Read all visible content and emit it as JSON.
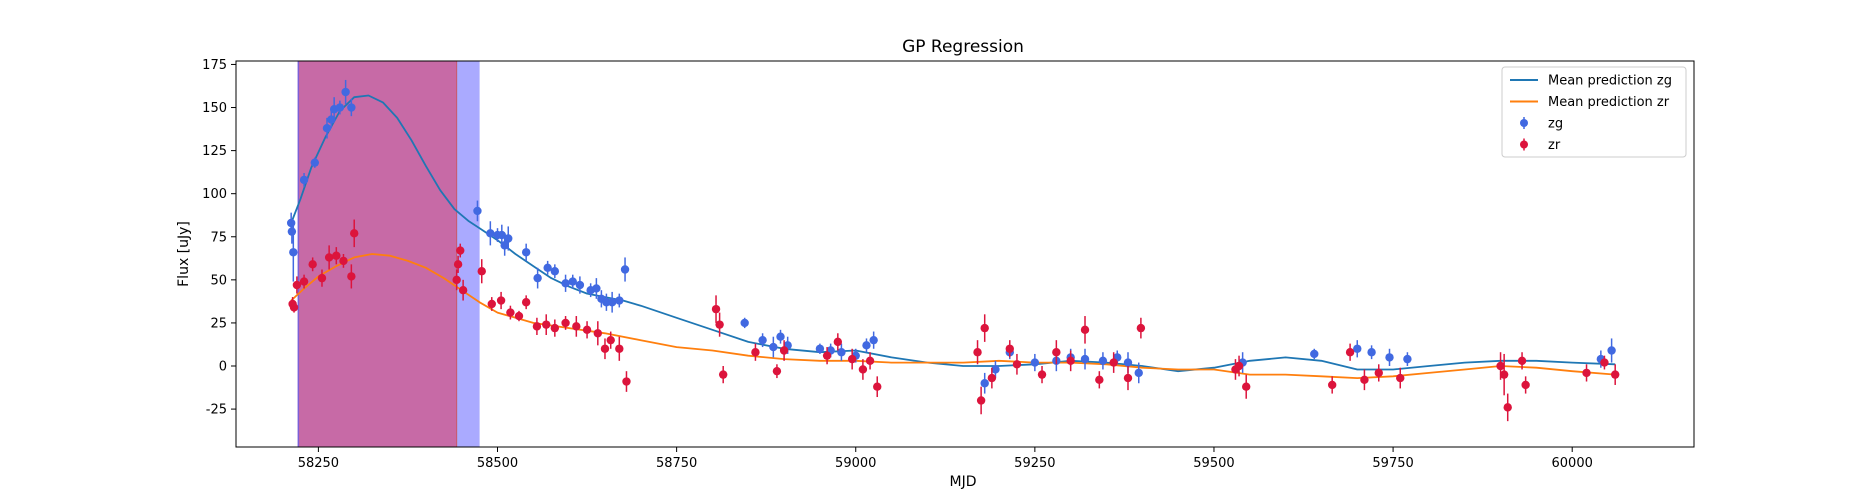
{
  "chart_data": {
    "type": "scatter",
    "title": "GP Regression",
    "xlabel": "MJD",
    "ylabel": "Flux [uJy]",
    "xlim": [
      58135,
      60170
    ],
    "ylim": [
      -47,
      177
    ],
    "x_ticks": [
      58250,
      58500,
      58750,
      59000,
      59250,
      59500,
      59750,
      60000
    ],
    "y_ticks": [
      -25,
      0,
      25,
      50,
      75,
      100,
      125,
      150,
      175
    ],
    "grid": false,
    "legend_position": "top-right",
    "shaded_regions": [
      {
        "x_start": 58222,
        "x_end": 58475,
        "color": "#aaaaff"
      },
      {
        "x_start": 58222,
        "x_end": 58443,
        "color": "#c76aa6"
      }
    ],
    "series": [
      {
        "name": "Mean prediction zg",
        "kind": "line",
        "color": "#1f77b4",
        "x": [
          58212,
          58225,
          58240,
          58260,
          58280,
          58300,
          58320,
          58340,
          58360,
          58380,
          58400,
          58420,
          58440,
          58460,
          58475,
          58500,
          58525,
          58550,
          58575,
          58600,
          58625,
          58650,
          58675,
          58700,
          58750,
          58800,
          58850,
          58900,
          58950,
          59000,
          59050,
          59100,
          59150,
          59200,
          59250,
          59300,
          59350,
          59400,
          59450,
          59500,
          59550,
          59600,
          59650,
          59700,
          59750,
          59800,
          59850,
          59900,
          59950,
          60000,
          60060
        ],
        "values": [
          83,
          97,
          115,
          133,
          148,
          156,
          157,
          153,
          144,
          131,
          116,
          102,
          91,
          84,
          80,
          73,
          65,
          58,
          51,
          46,
          42,
          40,
          38,
          35,
          28,
          21,
          14,
          10,
          8,
          9,
          5,
          2,
          0,
          0,
          1,
          3,
          2,
          0,
          -3,
          -1,
          3,
          5,
          3,
          -2,
          -2,
          0,
          2,
          3,
          3,
          2,
          1
        ]
      },
      {
        "name": "Mean prediction zr",
        "kind": "line",
        "color": "#ff7f0e",
        "x": [
          58212,
          58230,
          58250,
          58275,
          58300,
          58325,
          58350,
          58375,
          58400,
          58425,
          58450,
          58475,
          58500,
          58550,
          58600,
          58650,
          58700,
          58750,
          58800,
          58850,
          58900,
          58950,
          59000,
          59050,
          59100,
          59150,
          59200,
          59250,
          59300,
          59350,
          59400,
          59450,
          59500,
          59550,
          59600,
          59650,
          59700,
          59750,
          59800,
          59850,
          59900,
          59950,
          60000,
          60060
        ],
        "values": [
          38,
          45,
          52,
          58,
          63,
          65,
          64,
          61,
          57,
          51,
          44,
          37,
          31,
          25,
          22,
          19,
          15,
          11,
          9,
          6,
          4,
          3,
          3,
          2,
          2,
          2,
          3,
          2,
          2,
          1,
          -1,
          -2,
          -2,
          -5,
          -5,
          -6,
          -7,
          -6,
          -4,
          -2,
          0,
          -1,
          -3,
          -5
        ]
      },
      {
        "name": "zg",
        "kind": "points",
        "color": "#4169e1",
        "x": [
          58212,
          58213,
          58215,
          58230,
          58245,
          58262,
          58268,
          58272,
          58280,
          58288,
          58296,
          58472,
          58490,
          58500,
          58506,
          58510,
          58515,
          58540,
          58556,
          58570,
          58580,
          58595,
          58605,
          58615,
          58630,
          58638,
          58645,
          58652,
          58660,
          58670,
          58678,
          58845,
          58870,
          58885,
          58895,
          58905,
          58950,
          58965,
          58980,
          59000,
          59015,
          59025,
          59180,
          59195,
          59215,
          59250,
          59280,
          59300,
          59320,
          59345,
          59365,
          59380,
          59395,
          59540,
          59640,
          59700,
          59720,
          59745,
          59770,
          60040,
          60055
        ],
        "values": [
          83,
          78,
          66,
          108,
          118,
          138,
          143,
          149,
          150,
          159,
          150,
          90,
          77,
          76,
          76,
          70,
          74,
          66,
          51,
          57,
          55,
          48,
          49,
          47,
          44,
          45,
          39,
          37,
          37,
          38,
          56,
          25,
          15,
          11,
          17,
          12,
          10,
          9,
          8,
          6,
          12,
          15,
          -10,
          -2,
          8,
          2,
          3,
          5,
          4,
          3,
          5,
          2,
          -4,
          2,
          7,
          10,
          8,
          5,
          4,
          4,
          9
        ],
        "errors": [
          6,
          7,
          17,
          4,
          3,
          6,
          5,
          7,
          4,
          7,
          5,
          6,
          7,
          4,
          6,
          6,
          7,
          5,
          6,
          4,
          4,
          5,
          4,
          5,
          4,
          6,
          5,
          5,
          6,
          4,
          7,
          3,
          4,
          6,
          4,
          5,
          3,
          4,
          5,
          4,
          4,
          5,
          6,
          5,
          4,
          5,
          6,
          5,
          6,
          5,
          4,
          6,
          6,
          6,
          3,
          5,
          4,
          5,
          4,
          5,
          7
        ]
      },
      {
        "name": "zr",
        "kind": "points",
        "color": "#dc143c",
        "x": [
          58214,
          58216,
          58220,
          58230,
          58242,
          58255,
          58265,
          58275,
          58285,
          58296,
          58300,
          58443,
          58445,
          58448,
          58452,
          58478,
          58492,
          58505,
          58518,
          58530,
          58540,
          58555,
          58568,
          58580,
          58595,
          58610,
          58625,
          58640,
          58650,
          58658,
          58670,
          58680,
          58805,
          58810,
          58815,
          58860,
          58890,
          58900,
          58960,
          58975,
          58995,
          59010,
          59020,
          59030,
          59170,
          59175,
          59180,
          59190,
          59215,
          59225,
          59260,
          59280,
          59300,
          59320,
          59340,
          59360,
          59380,
          59398,
          59530,
          59535,
          59545,
          59665,
          59690,
          59710,
          59730,
          59760,
          59900,
          59905,
          59910,
          59930,
          59935,
          60020,
          60045,
          60060
        ],
        "values": [
          36,
          34,
          47,
          49,
          59,
          51,
          63,
          64,
          61,
          52,
          77,
          50,
          59,
          67,
          44,
          55,
          36,
          38,
          31,
          29,
          37,
          23,
          24,
          22,
          25,
          23,
          21,
          19,
          10,
          15,
          10,
          -9,
          33,
          24,
          -5,
          8,
          -3,
          9,
          6,
          14,
          4,
          -2,
          3,
          -12,
          8,
          -20,
          22,
          -7,
          10,
          1,
          -5,
          8,
          3,
          21,
          -8,
          2,
          -7,
          22,
          -2,
          0,
          -12,
          -11,
          8,
          -8,
          -4,
          -7,
          0,
          -5,
          -24,
          3,
          -11,
          -4,
          2,
          -5
        ],
        "errors": [
          4,
          3,
          5,
          4,
          4,
          5,
          7,
          5,
          4,
          7,
          8,
          6,
          5,
          4,
          6,
          7,
          4,
          5,
          4,
          3,
          4,
          5,
          6,
          5,
          4,
          6,
          5,
          7,
          6,
          5,
          7,
          6,
          8,
          7,
          5,
          5,
          4,
          6,
          5,
          5,
          6,
          6,
          5,
          6,
          7,
          8,
          8,
          6,
          5,
          6,
          5,
          7,
          6,
          8,
          5,
          6,
          7,
          6,
          6,
          6,
          7,
          5,
          5,
          6,
          5,
          6,
          8,
          12,
          8,
          5,
          5,
          5,
          4,
          6
        ]
      }
    ]
  }
}
